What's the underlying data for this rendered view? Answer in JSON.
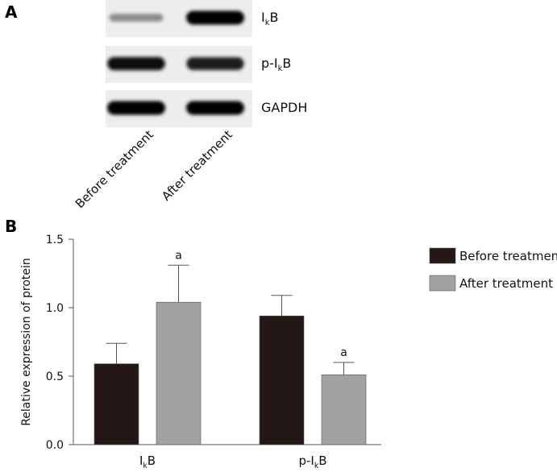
{
  "panel_a": {
    "letter": "A",
    "bands": [
      {
        "label": "IkB",
        "main": "I",
        "sub": "k",
        "tail": "B",
        "intensities": [
          0.35,
          1.0
        ]
      },
      {
        "label": "p-IkB",
        "main": "p-I",
        "sub": "k",
        "tail": "B",
        "intensities": [
          0.95,
          0.9
        ]
      },
      {
        "label": "GAPDH",
        "main": "GAPDH",
        "sub": "",
        "tail": "",
        "intensities": [
          1.0,
          1.0
        ]
      }
    ],
    "columns": [
      "Before treatment",
      "After treatment"
    ]
  },
  "panel_b": {
    "letter": "B"
  },
  "chart_data": {
    "type": "bar",
    "categories": [
      "IkB",
      "p-IkB"
    ],
    "category_display": [
      {
        "main": "I",
        "sub": "k",
        "tail": "B"
      },
      {
        "main": "p-I",
        "sub": "k",
        "tail": "B"
      }
    ],
    "series": [
      {
        "name": "Before treatment",
        "color": "#231815",
        "values": [
          0.59,
          0.94
        ],
        "errors": [
          0.15,
          0.15
        ],
        "annotations": [
          "",
          ""
        ]
      },
      {
        "name": "After treatment",
        "color": "#a0a2a4",
        "values": [
          1.04,
          0.51
        ],
        "errors": [
          0.27,
          0.09
        ],
        "annotations": [
          "a",
          "a"
        ]
      }
    ],
    "ylabel": "Relative expression of  protein",
    "ylim": [
      0,
      1.5
    ],
    "yticks": [
      0.0,
      0.5,
      1.0,
      1.5
    ],
    "ytick_labels": [
      "0.0",
      "0.5",
      "1.0",
      "1.5"
    ],
    "legend_position": "top-right",
    "grid": false
  }
}
